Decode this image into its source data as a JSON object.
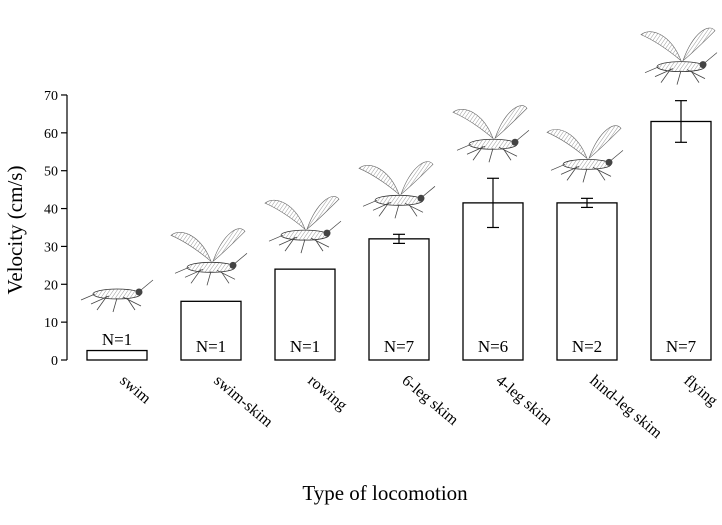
{
  "chart_data": {
    "type": "bar",
    "xlabel": "Type of locomotion",
    "ylabel": "Velocity (cm/s)",
    "ylim": [
      0,
      70
    ],
    "yticks": [
      0,
      10,
      20,
      30,
      40,
      50,
      60,
      70
    ],
    "grid": false,
    "categories": [
      "swim",
      "swim-skim",
      "rowing",
      "6-leg skim",
      "4-leg skim",
      "hind-leg skim",
      "flying"
    ],
    "values": [
      2.5,
      15.5,
      24,
      32,
      41.5,
      41.5,
      63
    ],
    "errors": [
      null,
      null,
      null,
      1.2,
      6.5,
      1.2,
      5.5
    ],
    "sample_labels": [
      "N=1",
      "N=1",
      "N=1",
      "N=7",
      "N=6",
      "N=2",
      "N=7"
    ],
    "illustrations": [
      "insect-swimming",
      "insect-swim-skimming",
      "insect-rowing",
      "insect-6-leg-skimming",
      "insect-4-leg-skimming",
      "insect-hind-leg-skimming",
      "insect-flying"
    ]
  }
}
